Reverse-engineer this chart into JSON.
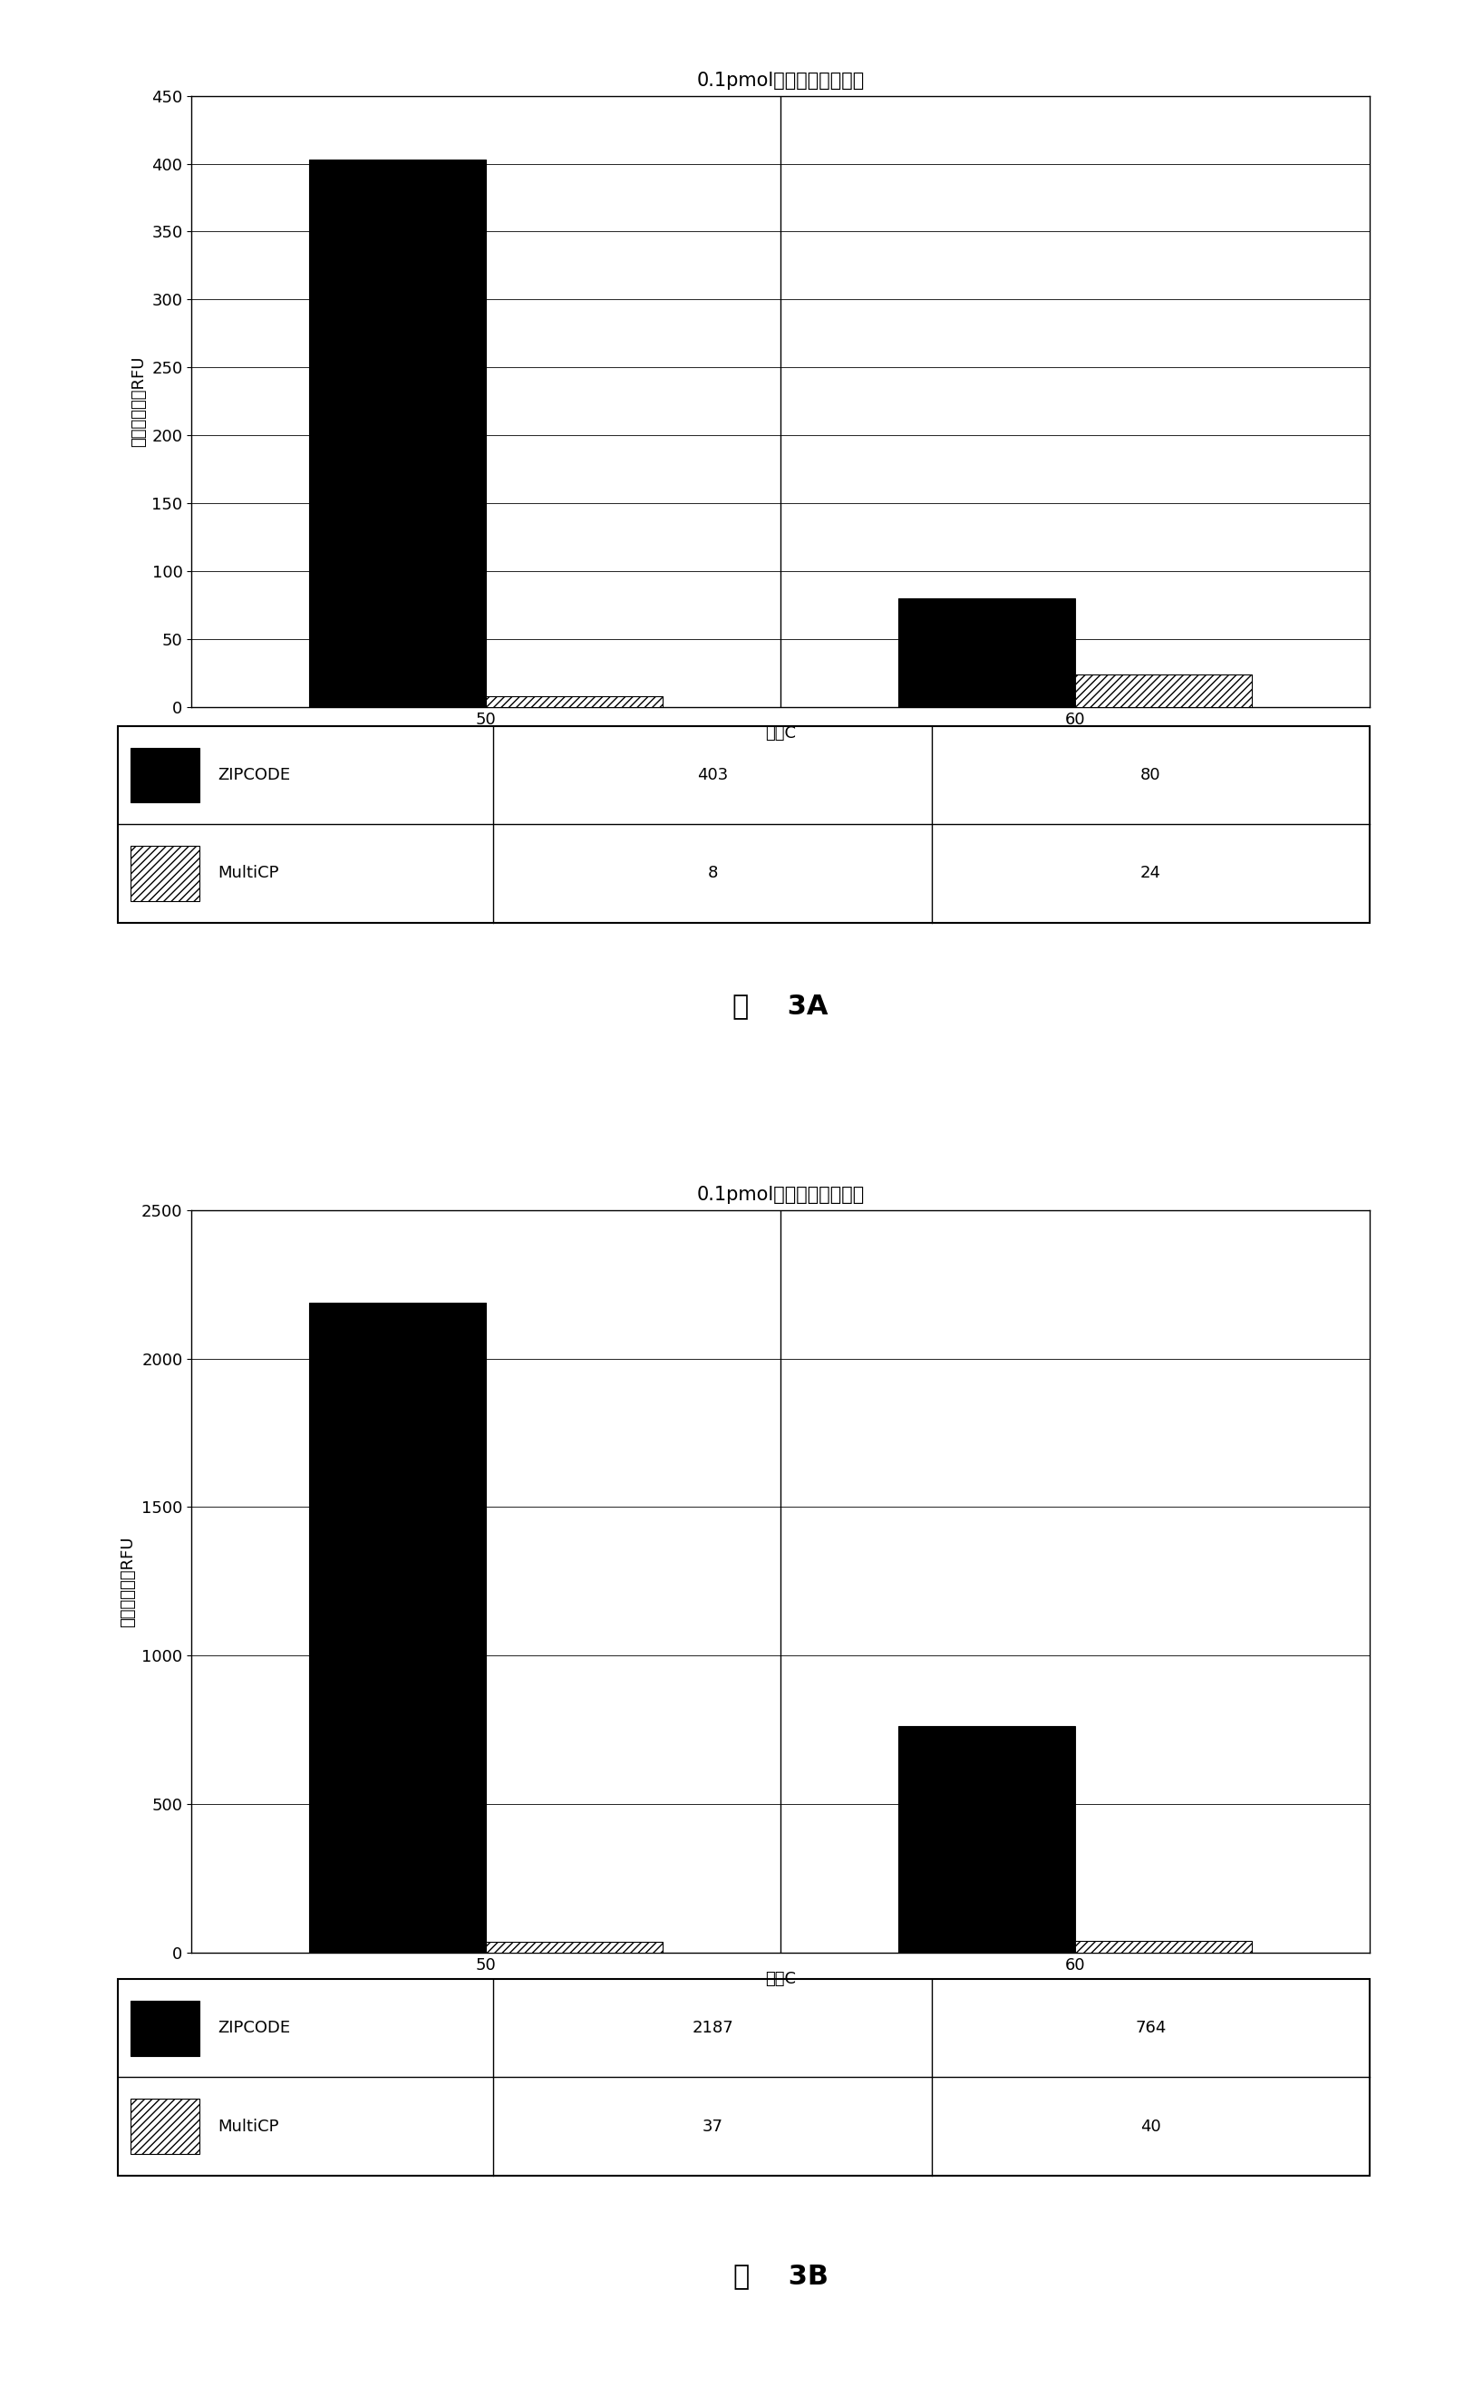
{
  "chart_A": {
    "title": "0.1pmol靶标的总交叉反应",
    "ylabel": "总的非对角线RFU",
    "xlabel": "温度C",
    "categories": [
      "50",
      "60"
    ],
    "zipcode_values": [
      403,
      80
    ],
    "multicp_values": [
      8,
      24
    ],
    "ylim": [
      0,
      450
    ],
    "yticks": [
      0,
      50,
      100,
      150,
      200,
      250,
      300,
      350,
      400,
      450
    ],
    "figure_label": "图    3A"
  },
  "chart_B": {
    "title": "0.1pmol靶标的总交叉反应",
    "ylabel": "总的非对角线RFU",
    "xlabel": "温度C",
    "categories": [
      "50",
      "60"
    ],
    "zipcode_values": [
      2187,
      764
    ],
    "multicp_values": [
      37,
      40
    ],
    "ylim": [
      0,
      2500
    ],
    "yticks": [
      0,
      500,
      1000,
      1500,
      2000,
      2500
    ],
    "figure_label": "图    3B"
  },
  "bar_width": 0.3,
  "zipcode_color": "#000000",
  "multicp_hatch": "////",
  "multicp_facecolor": "#ffffff",
  "multicp_edgecolor": "#000000",
  "background_color": "#ffffff",
  "font_size_title": 15,
  "font_size_label": 13,
  "font_size_tick": 13,
  "font_size_table": 13,
  "font_size_figure_label": 22
}
